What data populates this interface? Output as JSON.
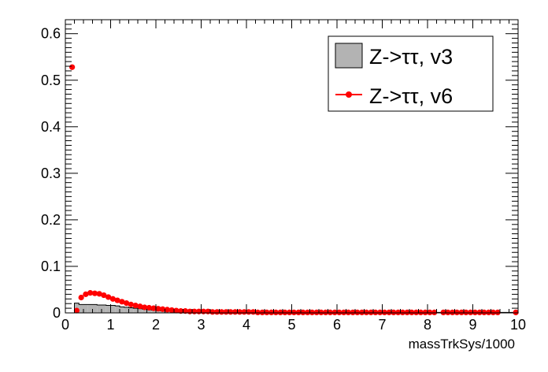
{
  "chart_data": {
    "type": "histogram",
    "xlabel": "massTrkSys/1000",
    "xlim": [
      0,
      10
    ],
    "ylim": [
      0,
      0.63
    ],
    "x_ticks": [
      0,
      1,
      2,
      3,
      4,
      5,
      6,
      7,
      8,
      9,
      10
    ],
    "x_tick_labels": [
      "0",
      "1",
      "2",
      "3",
      "4",
      "5",
      "6",
      "7",
      "8",
      "9",
      "10"
    ],
    "y_ticks": [
      0,
      0.1,
      0.2,
      0.3,
      0.4,
      0.5,
      0.6
    ],
    "y_tick_labels": [
      "0",
      "0.1",
      "0.2",
      "0.3",
      "0.4",
      "0.5",
      "0.6"
    ],
    "grid": false,
    "legend_position": "top-right",
    "bin_width": 0.1,
    "bin_centers": [
      0.15,
      0.25,
      0.35,
      0.45,
      0.55,
      0.65,
      0.75,
      0.85,
      0.95,
      1.05,
      1.15,
      1.25,
      1.35,
      1.45,
      1.55,
      1.65,
      1.75,
      1.85,
      1.95,
      2.05,
      2.15,
      2.25,
      2.35,
      2.45,
      2.55,
      2.65,
      2.75,
      2.85,
      2.95,
      3.05,
      3.15,
      3.25,
      3.35,
      3.45,
      3.55,
      3.65,
      3.75,
      3.85,
      3.95,
      4.05,
      4.15,
      4.25,
      4.35,
      4.45,
      4.55,
      4.65,
      4.75,
      4.85,
      4.95,
      5.05,
      5.15,
      5.25,
      5.35,
      5.45,
      5.55,
      5.65,
      5.75,
      5.85,
      5.95,
      6.05,
      6.15,
      6.25,
      6.35,
      6.45,
      6.55,
      6.65,
      6.75,
      6.85,
      6.95,
      7.05,
      7.15,
      7.25,
      7.35,
      7.45,
      7.55,
      7.65,
      7.75,
      7.85,
      7.95,
      8.05,
      8.15,
      8.35,
      8.45,
      8.55,
      8.65,
      8.75,
      8.85,
      8.95,
      9.05,
      9.15,
      9.25,
      9.35,
      9.45,
      9.55,
      9.95
    ],
    "series": [
      {
        "name": "Z->ττ, v3",
        "style": "filled-histogram",
        "fill_color": "#b3b3b3",
        "line_color": "#000000",
        "bin_edges": [
          0.0,
          0.2,
          0.3,
          0.4,
          0.5,
          0.6,
          0.7,
          0.8,
          0.9,
          1.0,
          1.1,
          1.2,
          1.3,
          1.4,
          1.5,
          1.6,
          1.7,
          1.8,
          1.9,
          2.0,
          2.1,
          2.2,
          2.3,
          2.4,
          2.5,
          2.7,
          3.0,
          10.0
        ],
        "values": [
          0,
          0.021,
          0.018,
          0.018,
          0.018,
          0.018,
          0.017,
          0.017,
          0.016,
          0.016,
          0.015,
          0.013,
          0.012,
          0.011,
          0.01,
          0.009,
          0.008,
          0.007,
          0.006,
          0.005,
          0.0045,
          0.004,
          0.0035,
          0.003,
          0.0025,
          0.002,
          0.001
        ]
      },
      {
        "name": "Z->ττ, v6",
        "style": "markers",
        "color": "#ff0000",
        "values": [
          0.528,
          0.005,
          0.033,
          0.04,
          0.043,
          0.042,
          0.041,
          0.038,
          0.034,
          0.03,
          0.027,
          0.024,
          0.021,
          0.018,
          0.016,
          0.014,
          0.012,
          0.011,
          0.01,
          0.009,
          0.008,
          0.007,
          0.006,
          0.005,
          0.004,
          0.004,
          0.003,
          0.003,
          0.003,
          0.003,
          0.003,
          0.002,
          0.002,
          0.002,
          0.002,
          0.002,
          0.002,
          0.002,
          0.002,
          0.002,
          0.002,
          0.001,
          0.001,
          0.001,
          0.001,
          0.001,
          0.001,
          0.001,
          0.001,
          0.001,
          0.001,
          0.001,
          0.001,
          0.001,
          0.001,
          0.001,
          0.001,
          0.001,
          0.001,
          0.001,
          0.001,
          0.001,
          0.001,
          0.001,
          0.001,
          0.001,
          0.001,
          0.001,
          0.001,
          0.001,
          0.001,
          0.001,
          0.001,
          0.001,
          0.001,
          0.001,
          0.001,
          0.001,
          0.001,
          0.001,
          0.001,
          0.001,
          0.001,
          0.001,
          0.001,
          0.001,
          0.001,
          0.001,
          0.001,
          0.001,
          0.001,
          0.001,
          0.001,
          0.001,
          0.001
        ]
      }
    ]
  }
}
